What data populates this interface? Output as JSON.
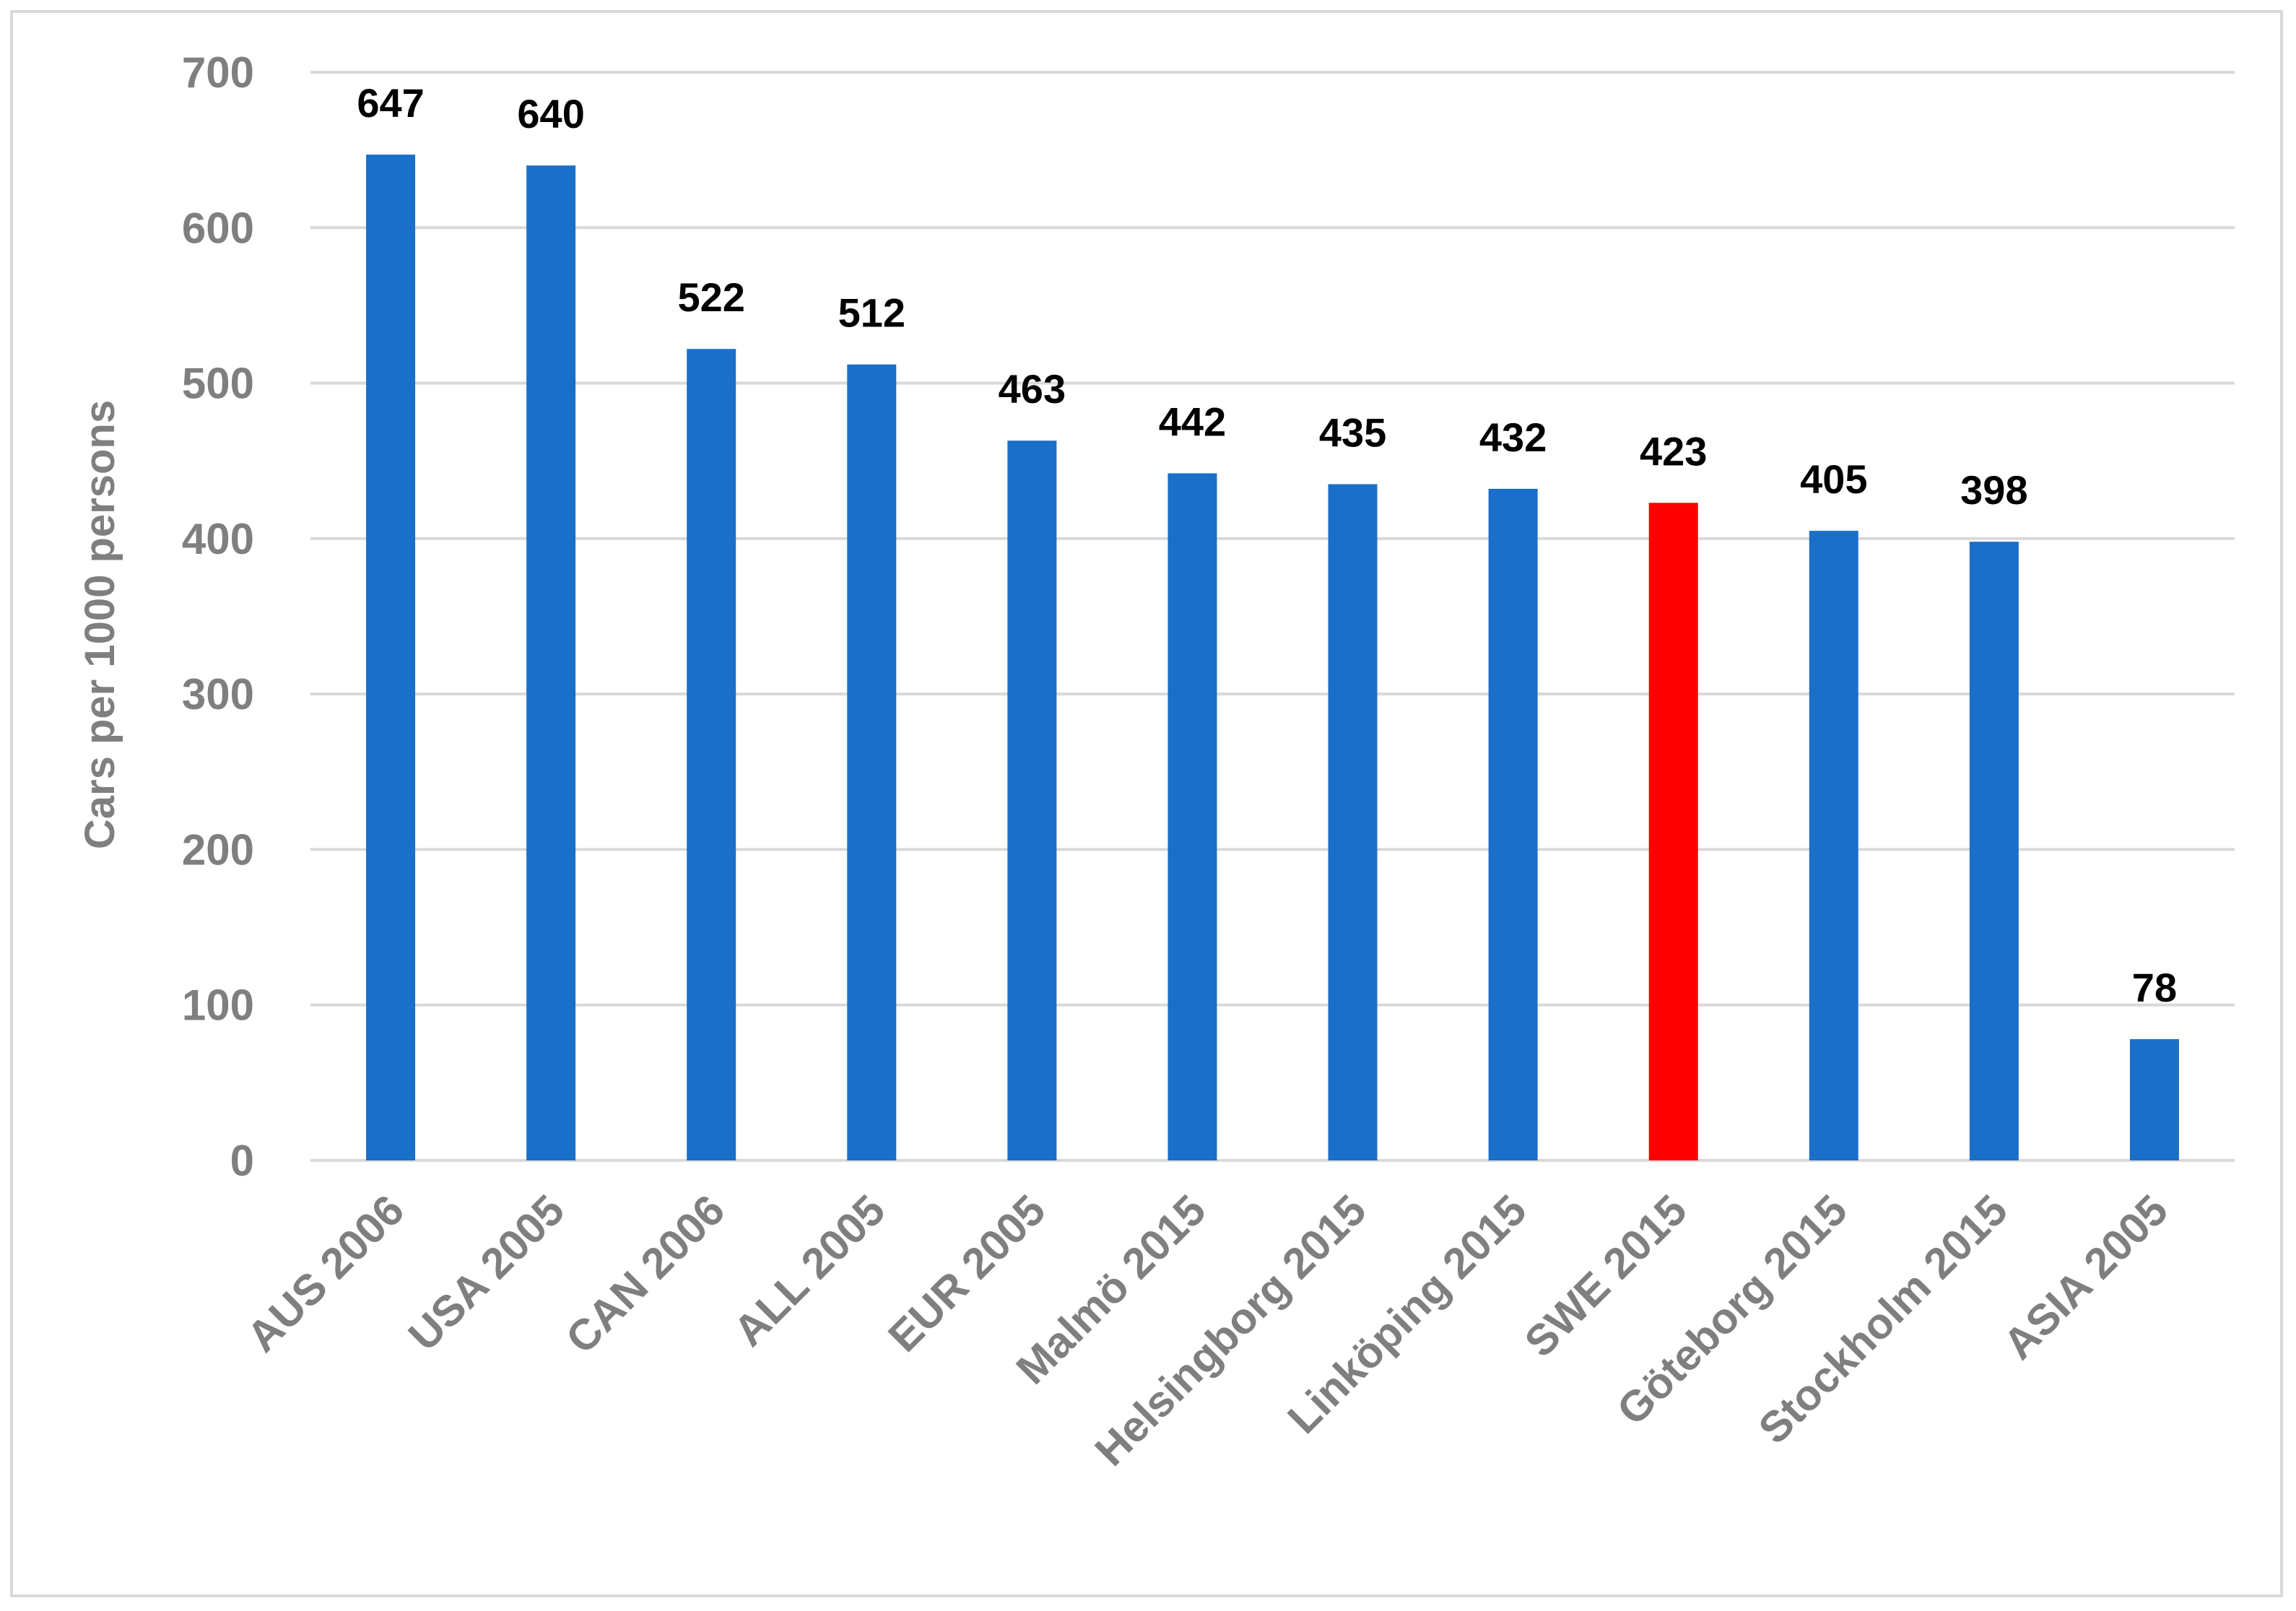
{
  "chart_data": {
    "type": "bar",
    "title": "",
    "xlabel": "",
    "ylabel": "Cars per 1000 persons",
    "ylim": [
      0,
      700
    ],
    "yticks": [
      0,
      100,
      200,
      300,
      400,
      500,
      600,
      700
    ],
    "ytick_labels": [
      "0",
      "100",
      "200",
      "300",
      "400",
      "500",
      "600",
      "700"
    ],
    "grid": true,
    "categories": [
      "AUS 2006",
      "USA 2005",
      "CAN 2006",
      "ALL 2005",
      "EUR 2005",
      "Malmö 2015",
      "Helsingborg 2015",
      "Linköping 2015",
      "SWE 2015",
      "Göteborg 2015",
      "Stockholm 2015",
      "ASIA 2005"
    ],
    "values": [
      647,
      640,
      522,
      512,
      463,
      442,
      435,
      432,
      423,
      405,
      398,
      78
    ],
    "data_labels": [
      "647",
      "640",
      "522",
      "512",
      "463",
      "442",
      "435",
      "432",
      "423",
      "405",
      "398",
      "78"
    ],
    "colors": [
      "#1a6fc9",
      "#1a6fc9",
      "#1a6fc9",
      "#1a6fc9",
      "#1a6fc9",
      "#1a6fc9",
      "#1a6fc9",
      "#1a6fc9",
      "#ff0000",
      "#1a6fc9",
      "#1a6fc9",
      "#1a6fc9"
    ]
  }
}
